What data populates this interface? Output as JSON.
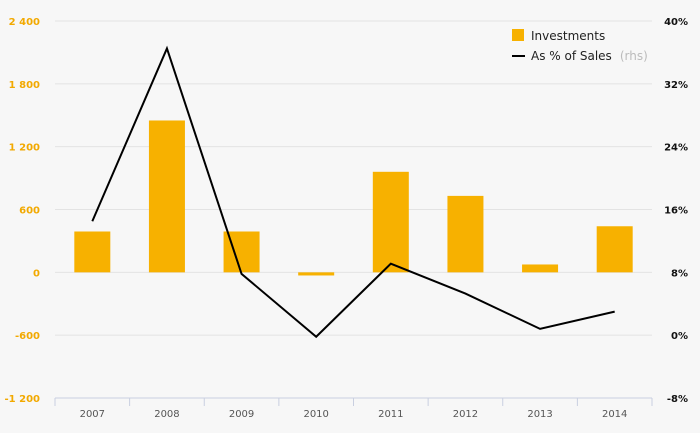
{
  "chart_data": {
    "type": "bar",
    "categories": [
      "2007",
      "2008",
      "2009",
      "2010",
      "2011",
      "2012",
      "2013",
      "2014"
    ],
    "series": [
      {
        "name": "Investments",
        "type": "bar",
        "axis": "left",
        "color": "#f7b100",
        "values": [
          390,
          1450,
          390,
          -30,
          960,
          730,
          75,
          440
        ]
      },
      {
        "name": "As % of Sales",
        "name_suffix": "(rhs)",
        "type": "line",
        "axis": "right",
        "color": "#000000",
        "values": [
          14.5,
          36.5,
          7.8,
          -0.2,
          9.1,
          5.3,
          0.8,
          3.0
        ]
      }
    ],
    "y_left": {
      "lim": [
        -1200,
        2400
      ],
      "ticks": [
        -1200,
        -600,
        0,
        600,
        1200,
        1800,
        2400
      ],
      "tick_labels": [
        "-1 200",
        "-600",
        "0",
        "600",
        "1 200",
        "1 800",
        "2 400"
      ]
    },
    "y_right": {
      "lim": [
        -8,
        40
      ],
      "ticks": [
        -8,
        0,
        8,
        16,
        24,
        32,
        40
      ],
      "tick_labels": [
        "-8%",
        "0%",
        "8%",
        "16%",
        "24%",
        "32%",
        "40%"
      ]
    },
    "grid": true,
    "legend": "top-right"
  }
}
